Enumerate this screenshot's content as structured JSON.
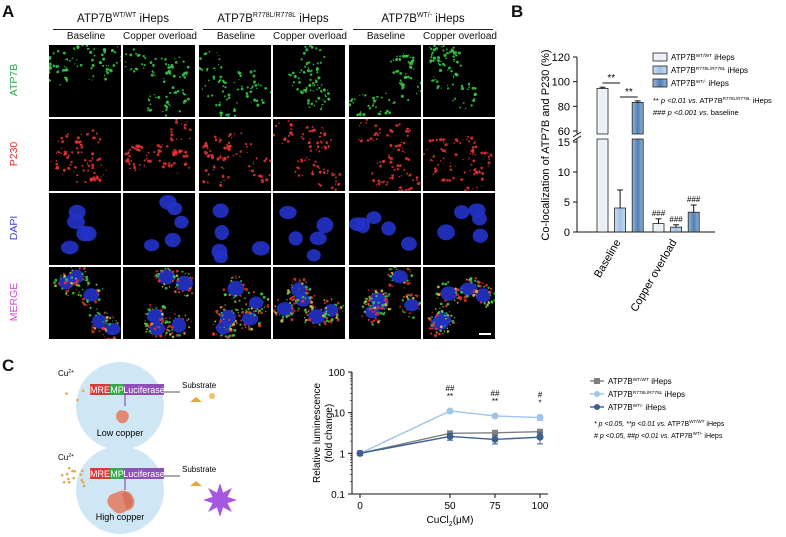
{
  "panels": {
    "a": "A",
    "b": "B",
    "c": "C"
  },
  "panel_a": {
    "groups": [
      {
        "base": "ATP7B",
        "sup": "WT/WT",
        "suffix": " iHeps"
      },
      {
        "base": "ATP7B",
        "sup": "R778L/R778L",
        "suffix": " iHeps"
      },
      {
        "base": "ATP7B",
        "sup": "WT/-",
        "suffix": " iHeps"
      }
    ],
    "conditions": [
      "Baseline",
      "Copper overload"
    ],
    "rows": [
      {
        "label": "ATP7B",
        "color": "#2fa84f"
      },
      {
        "label": "P230",
        "color": "#e03030"
      },
      {
        "label": "DAPI",
        "color": "#3f3fd0"
      },
      {
        "label": "MERGE",
        "color": "#d44bd4"
      }
    ]
  },
  "chart_data": [
    {
      "type": "bar",
      "ylabel": "Co-localization of ATP7B and P230 (%)",
      "categories": [
        "Baseline",
        "Copper overload"
      ],
      "y_axis_segments": [
        {
          "range": [
            0,
            15
          ],
          "ticks": [
            0,
            5,
            10,
            15
          ]
        },
        {
          "range": [
            60,
            120
          ],
          "ticks": [
            60,
            80,
            100,
            120
          ]
        }
      ],
      "series": [
        {
          "name_base": "ATP7B",
          "name_sup": "WT/WT",
          "name_suffix": " iHeps",
          "values": [
            94.5,
            1.4
          ],
          "errors": [
            1.0,
            0.8
          ],
          "fill": "#e8eef6"
        },
        {
          "name_base": "ATP7B",
          "name_sup": "R778L/R778L",
          "name_suffix": " iHeps",
          "values": [
            4.0,
            0.8
          ],
          "errors": [
            3.0,
            0.4
          ],
          "fill": "#9fc2e5"
        },
        {
          "name_base": "ATP7B",
          "name_sup": "WT/-",
          "name_suffix": " iHeps",
          "values": [
            83.2,
            3.3
          ],
          "errors": [
            1.2,
            1.2
          ],
          "fill": "#4e7fb5"
        }
      ],
      "significance": {
        "pair_brackets": [
          "**",
          "**"
        ],
        "copper_overload_marks": [
          "###",
          "###",
          "###"
        ]
      },
      "legend_notes": [
        {
          "sym": "**",
          "text": " p <0.01 ",
          "vs": "vs.",
          "base": " ATP7B",
          "sup": "R778L/R778L",
          "suffix": " iHeps"
        },
        {
          "sym": "###",
          "text": " p <0.001 ",
          "vs": "vs.",
          "base": " baseline",
          "sup": "",
          "suffix": ""
        }
      ]
    },
    {
      "type": "line",
      "ylabel_line1": "Relative luminescence",
      "ylabel_line2": "(fold change)",
      "xlabel_base": "CuCl",
      "xlabel_sub": "2",
      "xlabel_suffix": "(μM)",
      "y_scale": "log",
      "ylim": [
        0.1,
        100
      ],
      "y_ticks": [
        "0.1",
        "1",
        "10",
        "100"
      ],
      "x": [
        0,
        50,
        75,
        100
      ],
      "x_ticks": [
        "0",
        "50",
        "75",
        "100"
      ],
      "series": [
        {
          "name_base": "ATP7B",
          "name_sup": "WT/WT",
          "name_suffix": " iHeps",
          "values": [
            1.0,
            3.1,
            3.2,
            3.4
          ],
          "errors": [
            0.0,
            0.4,
            0.4,
            0.4
          ],
          "color": "#7f7f7f",
          "marker": "square"
        },
        {
          "name_base": "ATP7B",
          "name_sup": "R778L/R778L",
          "name_suffix": " iHeps",
          "values": [
            1.0,
            11.0,
            8.3,
            7.6
          ],
          "errors": [
            0.0,
            1.0,
            0.8,
            1.2
          ],
          "color": "#9ec5ea",
          "marker": "circle"
        },
        {
          "name_base": "ATP7B",
          "name_sup": "WT/-",
          "name_suffix": " iHeps",
          "values": [
            1.0,
            2.6,
            2.2,
            2.5
          ],
          "errors": [
            0.0,
            0.5,
            0.5,
            0.8
          ],
          "color": "#3c5f8f",
          "marker": "circle"
        }
      ],
      "annotations": [
        {
          "x": 50,
          "top": "##",
          "bottom": "**"
        },
        {
          "x": 75,
          "top": "##",
          "bottom": "**"
        },
        {
          "x": 100,
          "top": "#",
          "bottom": "*"
        }
      ],
      "legend_notes": [
        {
          "text": "* p <0.05, **p <0.01 ",
          "vs": "vs.",
          "base": " ATP7B",
          "sup": "WT/WT",
          "suffix": " iHeps"
        },
        {
          "text": "# p <0.05, ##p <0.01 ",
          "vs": "vs.",
          "base": " ATP7B",
          "sup": "WT/-",
          "suffix": " iHeps"
        }
      ]
    }
  ],
  "panel_c": {
    "ion": "Cu",
    "ion_charge": "2+",
    "construct": [
      "MRE",
      "MP",
      "Luciferase"
    ],
    "construct_colors": [
      "#d83a3a",
      "#3aa84a",
      "#8e4fb6"
    ],
    "substrate": "Substrate",
    "low": "Low copper",
    "high": "High copper"
  }
}
